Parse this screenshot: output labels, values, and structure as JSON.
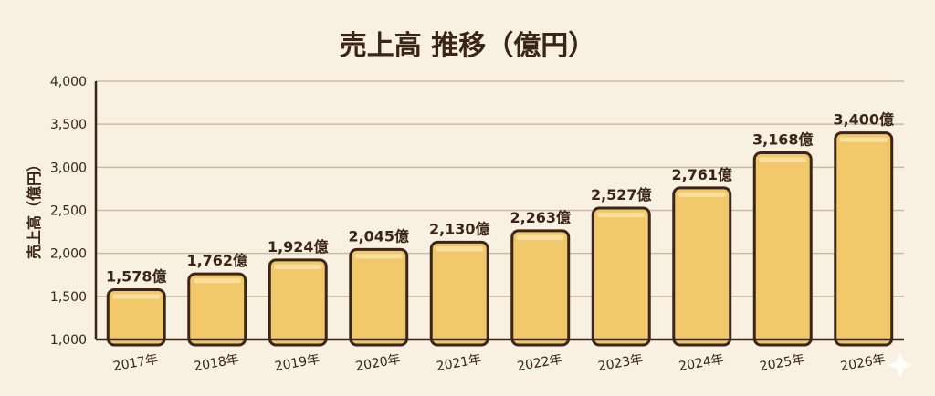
{
  "chart_data": {
    "type": "bar",
    "title": "売上高 推移（億円）",
    "xlabel": "",
    "ylabel": "売上高（億円）",
    "categories": [
      "2017年",
      "2018年",
      "2019年",
      "2020年",
      "2021年",
      "2022年",
      "2023年",
      "2024年",
      "2025年",
      "2026年"
    ],
    "values": [
      1578,
      1762,
      1924,
      2045,
      2130,
      2263,
      2527,
      2761,
      3168,
      3400
    ],
    "data_labels": [
      "1,578億",
      "1,762億",
      "1,924億",
      "2,045億",
      "2,130億",
      "2,263億",
      "2,527億",
      "2,761億",
      "3,168億",
      "3,400億"
    ],
    "ylim": [
      1000,
      4000
    ],
    "yticks": [
      1000,
      1500,
      2000,
      2500,
      3000,
      3500,
      4000
    ],
    "ytick_labels": [
      "1,000",
      "1,500",
      "2,000",
      "2,500",
      "3,000",
      "3,500",
      "4,000"
    ],
    "grid": true,
    "legend": "none",
    "colors": {
      "background": "#f8f1e1",
      "bar_fill": "#f2c96a",
      "bar_outline": "#3b2418",
      "grid": "#cdb9a6",
      "text": "#3b2418"
    }
  }
}
